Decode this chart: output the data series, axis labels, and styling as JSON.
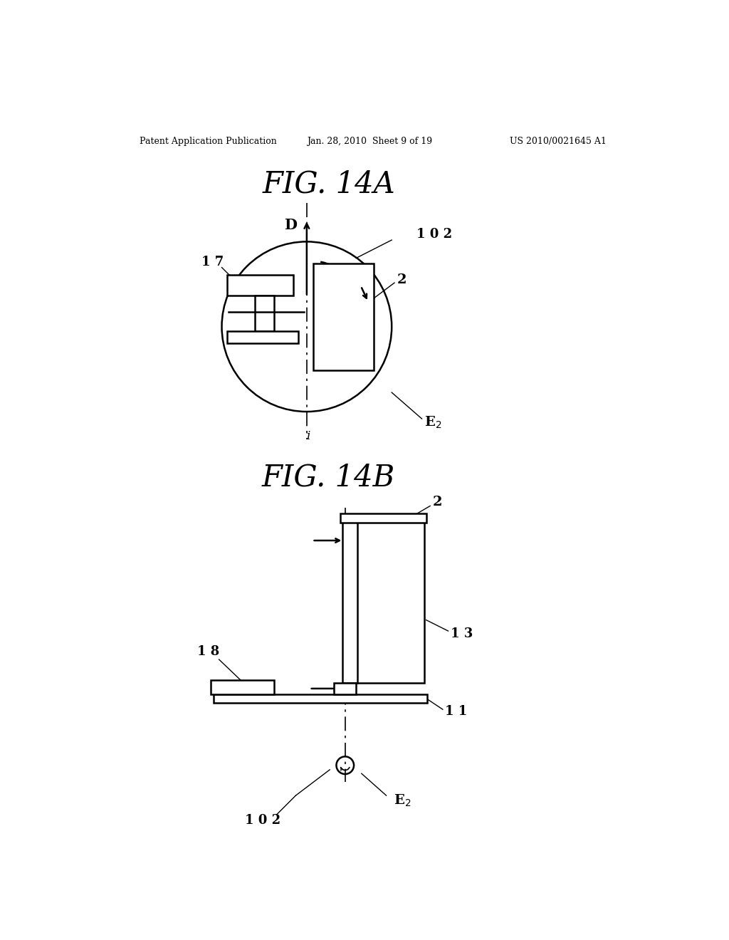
{
  "bg_color": "#ffffff",
  "header_left": "Patent Application Publication",
  "header_mid": "Jan. 28, 2010  Sheet 9 of 19",
  "header_right": "US 2010/0021645 A1",
  "fig_title_a": "FIG. 14A",
  "fig_title_b": "FIG. 14B",
  "line_color": "#000000",
  "fill_white": "#ffffff",
  "fill_light": "#f5f5f5"
}
